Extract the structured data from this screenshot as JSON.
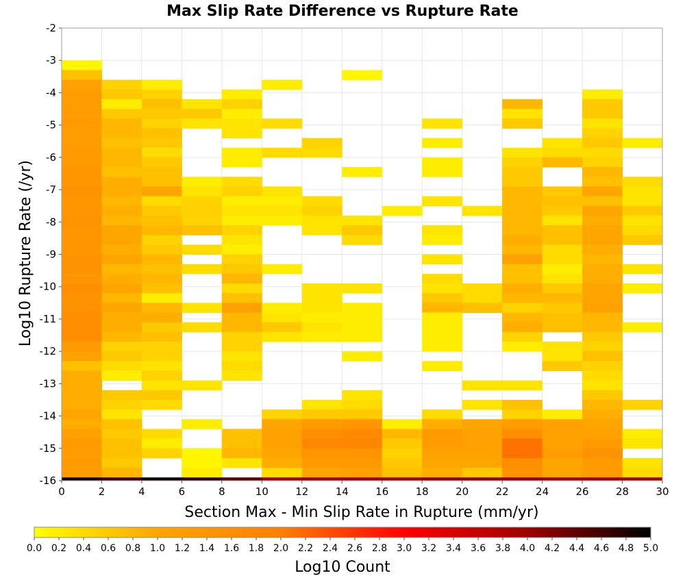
{
  "chart_data": {
    "type": "heatmap",
    "title": "Max Slip Rate Difference vs Rupture Rate",
    "xlabel": "Section Max - Min Slip Rate in Rupture (mm/yr)",
    "ylabel": "Log10 Rupture Rate (/yr)",
    "xlim": [
      0,
      30
    ],
    "ylim": [
      -16,
      -2
    ],
    "x_ticks": [
      "0",
      "2",
      "4",
      "6",
      "8",
      "10",
      "12",
      "14",
      "16",
      "18",
      "20",
      "22",
      "24",
      "26",
      "28",
      "30"
    ],
    "y_ticks": [
      "-2",
      "-3",
      "-4",
      "-5",
      "-6",
      "-7",
      "-8",
      "-9",
      "-10",
      "-11",
      "-12",
      "-13",
      "-14",
      "-15",
      "-16"
    ],
    "grid": true,
    "colorbar": {
      "label": "Log10 Count",
      "range": [
        0,
        5
      ],
      "ticks": [
        "0.0",
        "0.2",
        "0.4",
        "0.6",
        "0.8",
        "1.0",
        "1.2",
        "1.4",
        "1.6",
        "1.8",
        "2.0",
        "2.2",
        "2.4",
        "2.6",
        "2.8",
        "3.0",
        "3.2",
        "3.4",
        "3.6",
        "3.8",
        "4.0",
        "4.2",
        "4.4",
        "4.6",
        "4.8",
        "5.0"
      ],
      "colormap": [
        "#ffff00",
        "#ffa500",
        "#ff7f00",
        "#ff0000",
        "#a00000",
        "#000000"
      ]
    },
    "bin_width_x": 2,
    "bin_height_y": 0.3,
    "rows_y_from_top": [
      -3.0,
      -3.3,
      -3.6,
      -3.9,
      -4.2,
      -4.5,
      -4.8,
      -5.1,
      -5.4,
      -5.7,
      -6.0,
      -6.3,
      -6.6,
      -6.9,
      -7.2,
      -7.5,
      -7.8,
      -8.1,
      -8.4,
      -8.7,
      -9.0,
      -9.3,
      -9.6,
      -9.9,
      -10.2,
      -10.5,
      -10.8,
      -11.1,
      -11.4,
      -11.7,
      -12.0,
      -12.3,
      -12.6,
      -12.9,
      -13.2,
      -13.5,
      -13.8,
      -14.1,
      -14.4,
      -14.7,
      -15.0,
      -15.3,
      -15.6
    ],
    "columns_x_start": [
      0,
      2,
      4,
      6,
      8,
      10,
      12,
      14,
      16,
      18,
      20,
      22,
      24,
      26,
      28
    ],
    "log10_count_grid": [
      [
        0.1,
        null,
        null,
        null,
        null,
        null,
        null,
        null,
        null,
        null,
        null,
        null,
        null,
        null,
        null
      ],
      [
        0.7,
        null,
        null,
        null,
        null,
        null,
        null,
        0.1,
        null,
        null,
        null,
        null,
        null,
        null,
        null
      ],
      [
        1.1,
        0.5,
        0.2,
        null,
        null,
        0.2,
        null,
        null,
        null,
        null,
        null,
        null,
        null,
        null,
        null
      ],
      [
        1.2,
        0.6,
        0.5,
        null,
        0.2,
        null,
        null,
        null,
        null,
        null,
        null,
        null,
        null,
        0.2,
        null
      ],
      [
        1.2,
        0.2,
        0.7,
        0.3,
        0.5,
        null,
        null,
        null,
        null,
        null,
        null,
        0.8,
        null,
        0.6,
        null
      ],
      [
        1.2,
        0.6,
        0.6,
        0.6,
        0.2,
        null,
        null,
        null,
        null,
        null,
        null,
        0.3,
        null,
        0.6,
        null
      ],
      [
        1.3,
        0.8,
        0.5,
        0.3,
        0.3,
        0.4,
        null,
        null,
        null,
        0.3,
        null,
        0.6,
        null,
        0.3,
        null
      ],
      [
        1.2,
        0.8,
        0.7,
        null,
        0.3,
        null,
        null,
        null,
        null,
        null,
        null,
        null,
        null,
        0.5,
        null
      ],
      [
        1.2,
        0.7,
        0.6,
        null,
        null,
        null,
        0.5,
        null,
        null,
        0.2,
        null,
        null,
        0.3,
        0.6,
        0.2
      ],
      [
        1.3,
        0.8,
        0.4,
        null,
        0.2,
        0.4,
        0.4,
        null,
        null,
        null,
        null,
        0.3,
        0.4,
        0.4,
        null
      ],
      [
        1.3,
        0.8,
        0.6,
        null,
        0.2,
        null,
        null,
        null,
        null,
        0.2,
        null,
        0.5,
        0.8,
        0.5,
        null
      ],
      [
        1.4,
        0.7,
        0.7,
        null,
        null,
        null,
        null,
        0.2,
        null,
        0.2,
        null,
        0.6,
        null,
        0.8,
        null
      ],
      [
        1.4,
        0.9,
        0.7,
        0.2,
        0.4,
        null,
        null,
        null,
        null,
        null,
        null,
        0.6,
        null,
        0.7,
        0.4
      ],
      [
        1.5,
        0.9,
        1.0,
        0.3,
        0.5,
        0.3,
        null,
        null,
        null,
        null,
        null,
        0.8,
        0.6,
        1.0,
        0.3
      ],
      [
        1.4,
        0.8,
        0.4,
        0.5,
        0.2,
        0.2,
        0.4,
        null,
        null,
        0.3,
        null,
        0.8,
        0.7,
        0.7,
        0.3
      ],
      [
        1.4,
        0.9,
        0.6,
        0.5,
        0.3,
        0.3,
        0.5,
        null,
        0.2,
        null,
        0.3,
        0.8,
        0.6,
        1.0,
        0.6
      ],
      [
        1.5,
        0.8,
        0.7,
        0.5,
        0.2,
        0.2,
        0.3,
        0.3,
        null,
        null,
        null,
        0.8,
        0.3,
        0.9,
        0.3
      ],
      [
        1.4,
        1.0,
        0.8,
        0.7,
        0.5,
        null,
        0.3,
        0.6,
        null,
        0.3,
        null,
        0.8,
        0.7,
        1.0,
        0.4
      ],
      [
        1.4,
        1.0,
        0.5,
        null,
        0.3,
        null,
        null,
        0.4,
        null,
        0.2,
        null,
        0.9,
        0.7,
        1.0,
        0.6
      ],
      [
        1.4,
        0.9,
        0.6,
        0.4,
        0.2,
        null,
        null,
        null,
        null,
        null,
        null,
        0.8,
        0.4,
        0.9,
        null
      ],
      [
        1.5,
        1.0,
        0.8,
        null,
        0.5,
        null,
        null,
        null,
        null,
        0.3,
        null,
        1.1,
        0.4,
        0.8,
        null
      ],
      [
        1.5,
        0.8,
        0.7,
        0.4,
        0.6,
        0.2,
        null,
        null,
        null,
        null,
        null,
        0.7,
        0.2,
        0.9,
        0.3
      ],
      [
        1.4,
        0.9,
        0.8,
        null,
        0.8,
        null,
        null,
        null,
        null,
        0.4,
        null,
        0.7,
        0.3,
        0.9,
        null
      ],
      [
        1.6,
        1.0,
        0.7,
        null,
        0.4,
        null,
        0.3,
        0.3,
        null,
        0.3,
        0.4,
        0.9,
        0.6,
        1.0,
        0.2
      ],
      [
        1.5,
        0.8,
        0.2,
        null,
        0.7,
        null,
        0.3,
        null,
        null,
        0.6,
        0.4,
        0.8,
        0.8,
        1.0,
        null
      ],
      [
        1.5,
        1.0,
        0.8,
        0.3,
        1.1,
        0.2,
        0.3,
        0.2,
        null,
        0.8,
        0.7,
        0.5,
        0.6,
        1.1,
        null
      ],
      [
        1.6,
        0.9,
        0.9,
        null,
        0.8,
        0.3,
        0.2,
        0.2,
        null,
        0.2,
        null,
        0.8,
        0.7,
        0.8,
        null
      ],
      [
        1.6,
        0.9,
        0.6,
        0.4,
        0.8,
        0.6,
        0.3,
        0.2,
        null,
        0.2,
        null,
        0.9,
        0.7,
        0.8,
        0.2
      ],
      [
        1.6,
        0.8,
        0.7,
        null,
        0.5,
        0.3,
        0.2,
        0.2,
        null,
        0.2,
        null,
        0.5,
        null,
        0.6,
        null
      ],
      [
        1.3,
        0.5,
        0.5,
        null,
        0.5,
        null,
        null,
        null,
        null,
        0.2,
        null,
        0.2,
        0.3,
        0.5,
        null
      ],
      [
        1.1,
        0.6,
        0.5,
        null,
        0.3,
        null,
        null,
        0.2,
        null,
        null,
        null,
        null,
        0.3,
        0.7,
        null
      ],
      [
        0.7,
        0.4,
        0.3,
        null,
        0.4,
        null,
        null,
        null,
        null,
        0.2,
        null,
        null,
        0.6,
        0.5,
        null
      ],
      [
        0.9,
        0.2,
        0.5,
        null,
        0.3,
        null,
        null,
        null,
        null,
        null,
        null,
        null,
        null,
        0.4,
        null
      ],
      [
        0.9,
        null,
        0.3,
        0.3,
        null,
        null,
        null,
        null,
        null,
        null,
        0.3,
        0.3,
        null,
        0.3,
        null
      ],
      [
        0.9,
        0.6,
        0.6,
        null,
        null,
        null,
        null,
        0.3,
        null,
        null,
        null,
        null,
        null,
        0.6,
        null
      ],
      [
        0.9,
        0.5,
        0.4,
        null,
        null,
        null,
        0.3,
        0.4,
        null,
        null,
        0.3,
        0.7,
        null,
        0.8,
        0.5
      ],
      [
        1.0,
        0.3,
        null,
        null,
        null,
        0.5,
        0.6,
        0.6,
        null,
        0.4,
        null,
        0.5,
        0.2,
        0.9,
        null
      ],
      [
        0.9,
        0.7,
        null,
        0.2,
        null,
        1.0,
        1.3,
        1.4,
        0.2,
        0.9,
        1.0,
        1.2,
        1.1,
        1.0,
        null
      ],
      [
        1.1,
        0.6,
        0.4,
        null,
        0.7,
        1.1,
        1.6,
        1.7,
        0.8,
        1.3,
        1.1,
        1.6,
        1.1,
        1.1,
        0.2
      ],
      [
        1.3,
        0.7,
        0.2,
        null,
        0.7,
        1.1,
        1.8,
        1.8,
        0.6,
        1.2,
        1.1,
        2.1,
        1.1,
        1.3,
        0.3
      ],
      [
        1.2,
        0.7,
        0.5,
        0.1,
        0.8,
        1.0,
        1.4,
        1.4,
        0.5,
        1.1,
        1.1,
        2.1,
        1.2,
        1.5,
        null
      ],
      [
        1.3,
        0.6,
        null,
        0.1,
        0.3,
        0.9,
        1.3,
        1.3,
        0.6,
        1.0,
        1.0,
        1.6,
        1.0,
        1.3,
        0.3
      ],
      [
        1.2,
        0.8,
        null,
        0.2,
        null,
        0.4,
        1.0,
        1.1,
        0.7,
        0.9,
        0.6,
        1.5,
        1.0,
        1.3,
        0.4
      ]
    ],
    "bottom_row_y": -15.9,
    "bottom_row_log10_count": [
      4.9,
      4.6,
      4.9,
      4.7,
      4.4,
      4.0,
      4.0,
      4.0,
      4.0,
      4.1,
      4.1,
      4.1,
      4.0,
      4.0,
      4.0
    ]
  }
}
